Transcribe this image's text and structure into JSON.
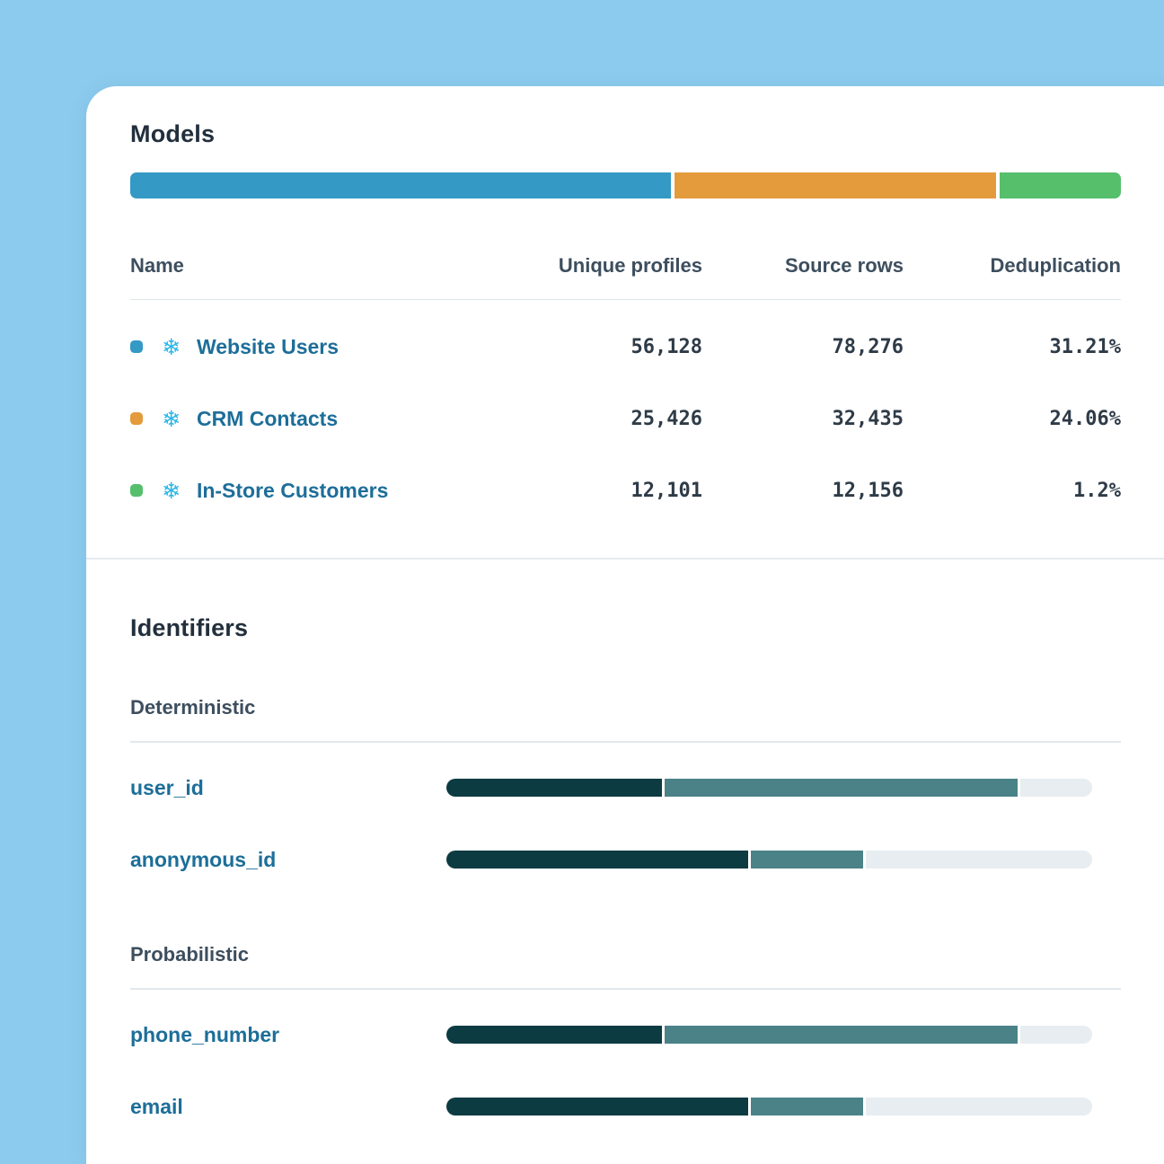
{
  "colors": {
    "background": "#8ccbee",
    "card": "#ffffff",
    "heading": "#222f3d",
    "subheading": "#3d4e5e",
    "link": "#1d6e99",
    "number_text": "#2e3b47",
    "model_blue": "#3499c5",
    "model_orange": "#e49b3c",
    "model_green": "#55bf6c",
    "bar_dark": "#0d3b42",
    "bar_medium": "#4a8288",
    "bar_light": "#e7edf1",
    "snowflake_blue": "#29b5e8",
    "divider": "#e2e8ed"
  },
  "models": {
    "title": "Models",
    "distribution": [
      {
        "name": "Website Users",
        "color": "#3499c5",
        "width": "54.6%"
      },
      {
        "name": "CRM Contacts",
        "color": "#e49b3c",
        "width": "32.4%"
      },
      {
        "name": "In-Store Customers",
        "color": "#55bf6c",
        "width": "12.3%"
      }
    ],
    "table": {
      "columns": {
        "name": "Name",
        "unique_profiles": "Unique profiles",
        "source_rows": "Source rows",
        "deduplication": "Deduplication"
      },
      "rows": [
        {
          "name": "Website Users",
          "swatch": "#3499c5",
          "source_icon": "snowflake-icon",
          "icon_glyph": "❄",
          "unique_profiles": "56,128",
          "source_rows": "78,276",
          "deduplication": "31.21%"
        },
        {
          "name": "CRM Contacts",
          "swatch": "#e49b3c",
          "source_icon": "snowflake-icon",
          "icon_glyph": "❄",
          "unique_profiles": "25,426",
          "source_rows": "32,435",
          "deduplication": "24.06%"
        },
        {
          "name": "In-Store Customers",
          "swatch": "#55bf6c",
          "source_icon": "snowflake-icon",
          "icon_glyph": "❄",
          "unique_profiles": "12,101",
          "source_rows": "12,156",
          "deduplication": "1.2%"
        }
      ]
    }
  },
  "identifiers": {
    "title": "Identifiers",
    "groups": [
      {
        "label": "Deterministic",
        "rows": [
          {
            "name": "user_id",
            "segments": {
              "dark": "33.4%",
              "medium": "54.7%"
            }
          },
          {
            "name": "anonymous_id",
            "segments": {
              "dark": "46.7%",
              "medium": "17.4%"
            }
          }
        ]
      },
      {
        "label": "Probabilistic",
        "rows": [
          {
            "name": "phone_number",
            "segments": {
              "dark": "33.4%",
              "medium": "54.7%"
            }
          },
          {
            "name": "email",
            "segments": {
              "dark": "46.7%",
              "medium": "17.4%"
            }
          }
        ]
      }
    ]
  }
}
